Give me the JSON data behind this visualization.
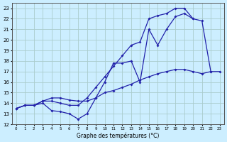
{
  "bg_color": "#cceeff",
  "grid_color": "#aacccc",
  "line_color": "#2222aa",
  "xlabel": "Graphe des températures (°C)",
  "xlim": [
    -0.5,
    23.5
  ],
  "ylim": [
    12,
    23.5
  ],
  "xtick_vals": [
    0,
    1,
    2,
    3,
    4,
    5,
    6,
    7,
    8,
    9,
    10,
    11,
    12,
    13,
    14,
    15,
    16,
    17,
    18,
    19,
    20,
    21,
    22,
    23
  ],
  "ytick_vals": [
    12,
    13,
    14,
    15,
    16,
    17,
    18,
    19,
    20,
    21,
    22,
    23
  ],
  "line1": {
    "x": [
      0,
      1,
      2,
      3,
      4,
      5,
      6,
      7,
      8,
      9,
      10,
      11,
      12,
      13,
      14,
      15,
      16,
      17,
      18,
      19,
      20,
      21,
      22
    ],
    "y": [
      13.5,
      13.8,
      13.8,
      14.0,
      13.3,
      13.2,
      13.0,
      12.5,
      13.0,
      14.5,
      16.0,
      17.8,
      17.8,
      18.0,
      16.0,
      21.0,
      19.5,
      21.0,
      22.2,
      22.5,
      22.0,
      21.8,
      17.0
    ]
  },
  "line2": {
    "x": [
      0,
      1,
      2,
      3,
      4,
      5,
      6,
      7,
      8,
      9,
      10,
      11,
      12,
      13,
      14,
      15,
      16,
      17,
      18,
      19,
      20
    ],
    "y": [
      13.5,
      13.8,
      13.8,
      14.2,
      14.2,
      14.0,
      13.8,
      13.8,
      14.5,
      15.5,
      16.5,
      17.5,
      18.5,
      19.5,
      19.8,
      22.0,
      22.3,
      22.5,
      23.0,
      23.0,
      22.0
    ]
  },
  "line3": {
    "x": [
      0,
      1,
      2,
      3,
      4,
      5,
      6,
      7,
      8,
      9,
      10,
      11,
      12,
      13,
      14,
      15,
      16,
      17,
      18,
      19,
      20,
      21,
      22,
      23
    ],
    "y": [
      13.5,
      13.8,
      13.8,
      14.2,
      14.5,
      14.5,
      14.3,
      14.2,
      14.2,
      14.5,
      15.0,
      15.2,
      15.5,
      15.8,
      16.2,
      16.5,
      16.8,
      17.0,
      17.2,
      17.2,
      17.0,
      16.8,
      17.0,
      17.0
    ]
  }
}
